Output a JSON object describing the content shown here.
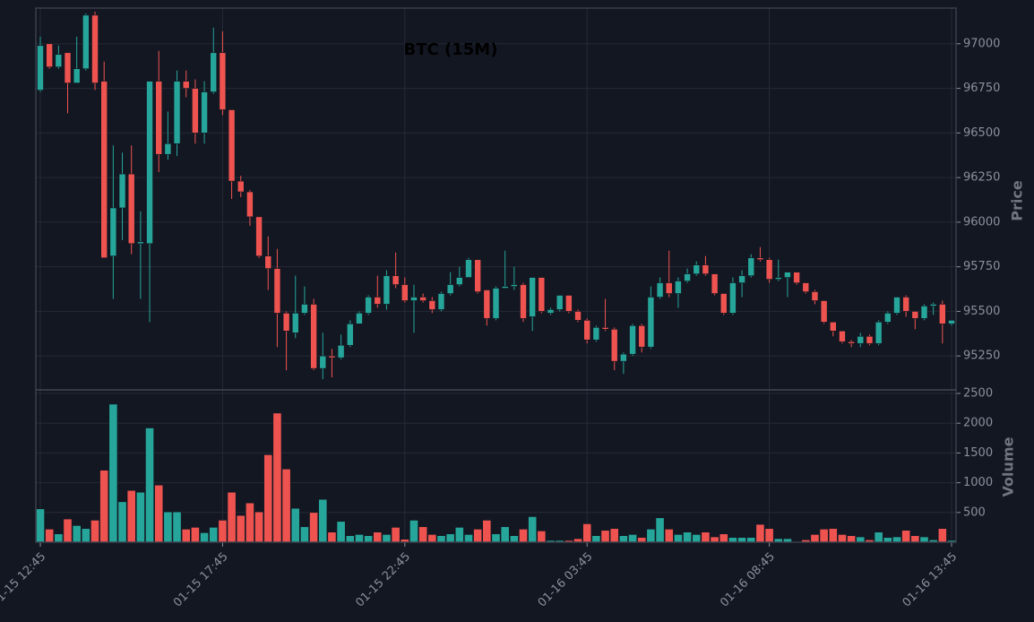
{
  "chart_data": {
    "type": "candlestick",
    "title": "BTC (15M)",
    "ylabel": "Price",
    "volume_label": "Volume",
    "up_color": "#26a69a",
    "down_color": "#ef5350",
    "categories": [
      "01-15 12:45",
      null,
      null,
      null,
      null,
      null,
      null,
      null,
      null,
      null,
      null,
      null,
      null,
      null,
      null,
      null,
      null,
      null,
      null,
      null,
      "01-15 17:45",
      null,
      null,
      null,
      null,
      null,
      null,
      null,
      null,
      null,
      null,
      null,
      null,
      null,
      null,
      null,
      null,
      null,
      null,
      null,
      "01-15 22:45",
      null,
      null,
      null,
      null,
      null,
      null,
      null,
      null,
      null,
      null,
      null,
      null,
      null,
      null,
      null,
      null,
      null,
      null,
      null,
      "01-16 03:45",
      null,
      null,
      null,
      null,
      null,
      null,
      null,
      null,
      null,
      null,
      null,
      null,
      null,
      null,
      null,
      null,
      null,
      null,
      null,
      "01-16 08:45",
      null,
      null,
      null,
      null,
      null,
      null,
      null,
      null,
      null,
      null,
      null,
      null,
      null,
      null,
      null,
      null,
      null,
      null,
      null,
      "01-16 13:45"
    ],
    "open": [
      96740,
      97000,
      96870,
      96950,
      96780,
      96860,
      97160,
      96790,
      95810,
      96080,
      96270,
      95880,
      95880,
      96790,
      96380,
      96440,
      96790,
      96750,
      96500,
      96730,
      96950,
      96630,
      96230,
      96170,
      96030,
      95810,
      95740,
      95490,
      95380,
      95490,
      95540,
      95180,
      95250,
      95240,
      95310,
      95430,
      95490,
      95580,
      95540,
      95700,
      95650,
      95560,
      95580,
      95560,
      95510,
      95600,
      95650,
      95690,
      95790,
      95620,
      95460,
      95630,
      95640,
      95650,
      95470,
      95690,
      95490,
      95510,
      95590,
      95500,
      95450,
      95340,
      95410,
      95400,
      95220,
      95260,
      95420,
      95300,
      95580,
      95660,
      95600,
      95670,
      95710,
      95760,
      95710,
      95600,
      95490,
      95660,
      95700,
      95800,
      95790,
      95680,
      95690,
      95720,
      95660,
      95610,
      95560,
      95440,
      95390,
      95330,
      95320,
      95360,
      95320,
      95440,
      95490,
      95580,
      95500,
      95460,
      95530,
      95540,
      95430
    ],
    "high": [
      97040,
      97000,
      96990,
      96950,
      97040,
      97170,
      97180,
      96900,
      96430,
      96390,
      96430,
      96060,
      96790,
      96960,
      96620,
      96850,
      96850,
      96800,
      96790,
      97090,
      97070,
      96630,
      96260,
      96180,
      96030,
      95920,
      95850,
      95500,
      95700,
      95640,
      95570,
      95380,
      95290,
      95370,
      95450,
      95500,
      95590,
      95700,
      95730,
      95830,
      95690,
      95650,
      95600,
      95580,
      95610,
      95720,
      95750,
      95800,
      95790,
      95620,
      95640,
      95840,
      95750,
      95660,
      95690,
      95690,
      95520,
      95590,
      95590,
      95510,
      95460,
      95420,
      95570,
      95410,
      95270,
      95430,
      95430,
      95640,
      95690,
      95840,
      95690,
      95740,
      95780,
      95810,
      95710,
      95600,
      95690,
      95730,
      95820,
      95860,
      95800,
      95790,
      95720,
      95720,
      95660,
      95620,
      95560,
      95440,
      95390,
      95340,
      95380,
      95370,
      95450,
      95500,
      95580,
      95590,
      95500,
      95540,
      95550,
      95560,
      95450
    ],
    "low": [
      96730,
      96860,
      96860,
      96610,
      96780,
      96850,
      96740,
      95800,
      95570,
      95900,
      95820,
      95570,
      95440,
      96280,
      96350,
      96370,
      96700,
      96440,
      96440,
      96720,
      96600,
      96130,
      96140,
      95980,
      95800,
      95620,
      95300,
      95170,
      95350,
      95480,
      95170,
      95120,
      95130,
      95230,
      95300,
      95430,
      95480,
      95520,
      95510,
      95630,
      95550,
      95380,
      95550,
      95490,
      95500,
      95590,
      95640,
      95690,
      95600,
      95420,
      95450,
      95630,
      95620,
      95440,
      95390,
      95490,
      95480,
      95500,
      95490,
      95440,
      95320,
      95330,
      95390,
      95170,
      95150,
      95250,
      95270,
      95290,
      95570,
      95580,
      95520,
      95660,
      95700,
      95700,
      95590,
      95480,
      95480,
      95580,
      95690,
      95780,
      95660,
      95670,
      95580,
      95650,
      95600,
      95540,
      95430,
      95360,
      95320,
      95300,
      95300,
      95310,
      95310,
      95430,
      95480,
      95470,
      95400,
      95450,
      95480,
      95320,
      95420
    ],
    "close": [
      96990,
      96870,
      96940,
      96780,
      96860,
      97160,
      96780,
      95800,
      96080,
      96270,
      95880,
      95890,
      96790,
      96380,
      96440,
      96790,
      96750,
      96500,
      96730,
      96950,
      96630,
      96230,
      96170,
      96030,
      95810,
      95740,
      95490,
      95390,
      95490,
      95540,
      95180,
      95250,
      95240,
      95310,
      95430,
      95490,
      95580,
      95540,
      95700,
      95650,
      95560,
      95580,
      95560,
      95510,
      95600,
      95650,
      95690,
      95790,
      95610,
      95460,
      95630,
      95640,
      95650,
      95460,
      95690,
      95500,
      95510,
      95590,
      95500,
      95450,
      95340,
      95410,
      95400,
      95220,
      95260,
      95420,
      95300,
      95580,
      95660,
      95600,
      95670,
      95710,
      95760,
      95710,
      95600,
      95490,
      95660,
      95700,
      95800,
      95790,
      95680,
      95690,
      95720,
      95660,
      95610,
      95560,
      95440,
      95390,
      95330,
      95320,
      95360,
      95320,
      95440,
      95490,
      95580,
      95500,
      95460,
      95530,
      95540,
      95430,
      95450
    ],
    "volume": [
      560,
      220,
      140,
      390,
      280,
      230,
      370,
      1210,
      2320,
      680,
      870,
      840,
      1920,
      960,
      510,
      510,
      220,
      250,
      160,
      250,
      370,
      840,
      450,
      660,
      510,
      1470,
      2170,
      1230,
      570,
      260,
      500,
      720,
      170,
      350,
      110,
      130,
      110,
      170,
      130,
      250,
      50,
      370,
      260,
      130,
      110,
      140,
      250,
      130,
      220,
      370,
      140,
      260,
      110,
      220,
      430,
      190,
      30,
      30,
      30,
      60,
      310,
      110,
      200,
      230,
      110,
      130,
      80,
      220,
      410,
      220,
      130,
      170,
      130,
      170,
      90,
      140,
      80,
      80,
      80,
      300,
      230,
      60,
      60,
      10,
      40,
      130,
      220,
      230,
      130,
      110,
      90,
      40,
      170,
      80,
      90,
      200,
      110,
      90,
      40,
      230,
      30
    ],
    "ylim": [
      95060,
      97200
    ],
    "yticks": [
      95250,
      95500,
      95750,
      96000,
      96250,
      96500,
      96750,
      97000
    ],
    "volume_ylim": [
      0,
      2560
    ],
    "volume_yticks": [
      500,
      1000,
      1500,
      2000,
      2500
    ],
    "grid": true
  }
}
